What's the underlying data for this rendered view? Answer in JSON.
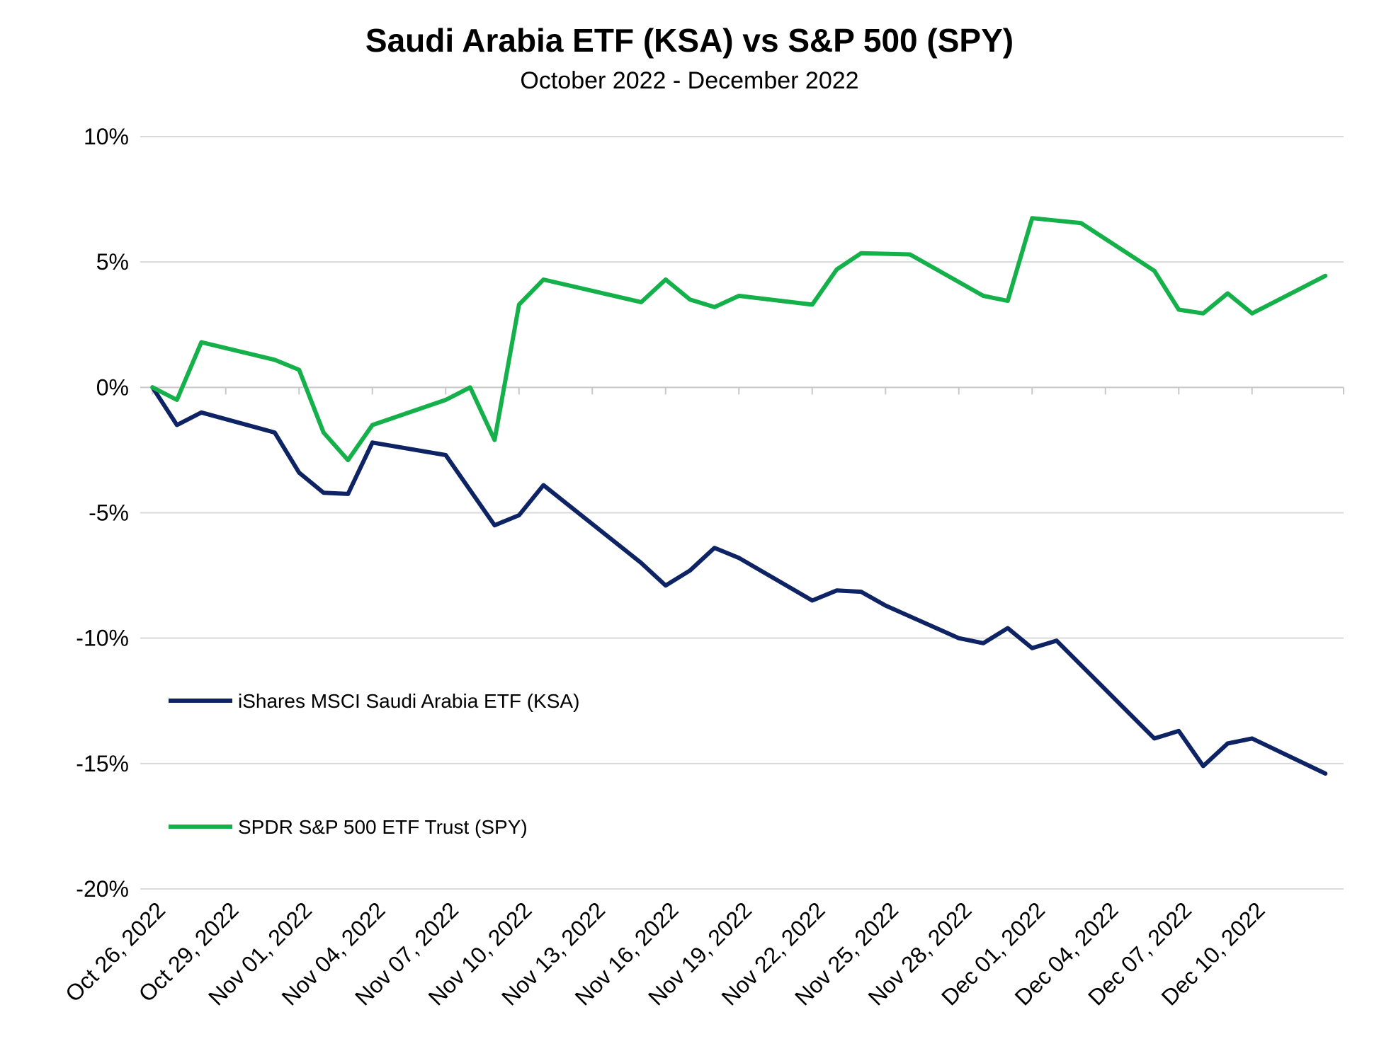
{
  "title": "Saudi Arabia ETF (KSA) vs S&P 500 (SPY)",
  "subtitle": "October 2022 - December 2022",
  "chart_data": {
    "type": "line",
    "title": "Saudi Arabia ETF (KSA) vs S&P 500 (SPY)",
    "subtitle": "October 2022 - December 2022",
    "xlabel": "",
    "ylabel": "",
    "ylim": [
      -20,
      10
    ],
    "xlim": [
      "2022-10-26",
      "2022-12-13"
    ],
    "yticks": [
      10,
      5,
      0,
      -5,
      -10,
      -15,
      -20
    ],
    "ytick_labels": [
      "10%",
      "5%",
      "0%",
      "-5%",
      "-10%",
      "-15%",
      "-20%"
    ],
    "xticks": [
      "2022-10-26",
      "2022-10-29",
      "2022-11-01",
      "2022-11-04",
      "2022-11-07",
      "2022-11-10",
      "2022-11-13",
      "2022-11-16",
      "2022-11-19",
      "2022-11-22",
      "2022-11-25",
      "2022-11-28",
      "2022-12-01",
      "2022-12-04",
      "2022-12-07",
      "2022-12-10"
    ],
    "xtick_labels": [
      "Oct 26, 2022",
      "Oct 29, 2022",
      "Nov 01, 2022",
      "Nov 04, 2022",
      "Nov 07, 2022",
      "Nov 10, 2022",
      "Nov 13, 2022",
      "Nov 16, 2022",
      "Nov 19, 2022",
      "Nov 22, 2022",
      "Nov 25, 2022",
      "Nov 28, 2022",
      "Dec 01, 2022",
      "Dec 04, 2022",
      "Dec 07, 2022",
      "Dec 10, 2022"
    ],
    "grid": "horizontal",
    "legend_position": "lower-left",
    "series": [
      {
        "name": "iShares MSCI Saudi Arabia ETF (KSA)",
        "color": "#0d2364",
        "points": [
          [
            "2022-10-26",
            0.0
          ],
          [
            "2022-10-27",
            -1.5
          ],
          [
            "2022-10-28",
            -1.0
          ],
          [
            "2022-10-31",
            -1.8
          ],
          [
            "2022-11-01",
            -3.4
          ],
          [
            "2022-11-02",
            -4.2
          ],
          [
            "2022-11-03",
            -4.25
          ],
          [
            "2022-11-04",
            -2.2
          ],
          [
            "2022-11-07",
            -2.7
          ],
          [
            "2022-11-09",
            -5.5
          ],
          [
            "2022-11-10",
            -5.1
          ],
          [
            "2022-11-11",
            -3.9
          ],
          [
            "2022-11-15",
            -7.0
          ],
          [
            "2022-11-16",
            -7.9
          ],
          [
            "2022-11-17",
            -7.3
          ],
          [
            "2022-11-18",
            -6.4
          ],
          [
            "2022-11-19",
            -6.8
          ],
          [
            "2022-11-22",
            -8.5
          ],
          [
            "2022-11-23",
            -8.1
          ],
          [
            "2022-11-24",
            -8.15
          ],
          [
            "2022-11-25",
            -8.7
          ],
          [
            "2022-11-28",
            -10.0
          ],
          [
            "2022-11-29",
            -10.2
          ],
          [
            "2022-11-30",
            -9.6
          ],
          [
            "2022-12-01",
            -10.4
          ],
          [
            "2022-12-02",
            -10.1
          ],
          [
            "2022-12-06",
            -14.0
          ],
          [
            "2022-12-07",
            -13.7
          ],
          [
            "2022-12-08",
            -15.1
          ],
          [
            "2022-12-09",
            -14.2
          ],
          [
            "2022-12-10",
            -14.0
          ],
          [
            "2022-12-13",
            -15.4
          ]
        ]
      },
      {
        "name": "SPDR S&P 500 ETF Trust (SPY)",
        "color": "#14b04a",
        "points": [
          [
            "2022-10-26",
            0.0
          ],
          [
            "2022-10-27",
            -0.5
          ],
          [
            "2022-10-28",
            1.8
          ],
          [
            "2022-10-31",
            1.1
          ],
          [
            "2022-11-01",
            0.7
          ],
          [
            "2022-11-02",
            -1.8
          ],
          [
            "2022-11-03",
            -2.9
          ],
          [
            "2022-11-04",
            -1.5
          ],
          [
            "2022-11-07",
            -0.5
          ],
          [
            "2022-11-08",
            0.0
          ],
          [
            "2022-11-09",
            -2.1
          ],
          [
            "2022-11-10",
            3.3
          ],
          [
            "2022-11-11",
            4.3
          ],
          [
            "2022-11-15",
            3.4
          ],
          [
            "2022-11-16",
            4.3
          ],
          [
            "2022-11-17",
            3.5
          ],
          [
            "2022-11-18",
            3.2
          ],
          [
            "2022-11-19",
            3.65
          ],
          [
            "2022-11-22",
            3.3
          ],
          [
            "2022-11-23",
            4.7
          ],
          [
            "2022-11-24",
            5.35
          ],
          [
            "2022-11-26",
            5.3
          ],
          [
            "2022-11-29",
            3.65
          ],
          [
            "2022-11-30",
            3.45
          ],
          [
            "2022-12-01",
            6.75
          ],
          [
            "2022-12-02",
            6.65
          ],
          [
            "2022-12-03",
            6.55
          ],
          [
            "2022-12-06",
            4.65
          ],
          [
            "2022-12-07",
            3.1
          ],
          [
            "2022-12-08",
            2.95
          ],
          [
            "2022-12-09",
            3.75
          ],
          [
            "2022-12-10",
            2.95
          ],
          [
            "2022-12-13",
            4.45
          ]
        ]
      }
    ]
  }
}
